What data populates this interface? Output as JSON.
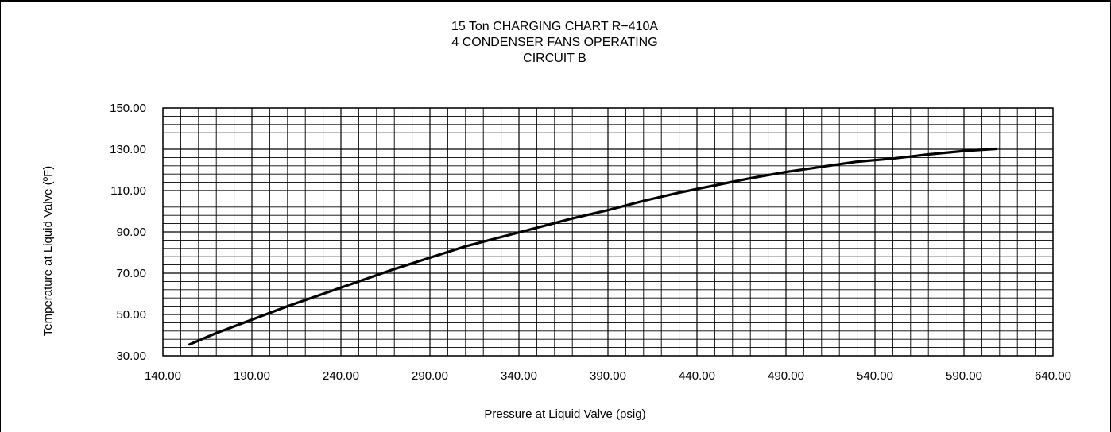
{
  "chart_data": {
    "type": "line",
    "title_lines": [
      "15 Ton CHARGING CHART R−410A",
      "4 CONDENSER FANS OPERATING",
      "CIRCUIT B"
    ],
    "xlabel": "Pressure at Liquid Valve (psig)",
    "ylabel": "Temperature at Liquid Valve (ºF)",
    "xlim": [
      140,
      640
    ],
    "ylim": [
      30,
      150
    ],
    "x_ticks": [
      "140.00",
      "190.00",
      "240.00",
      "290.00",
      "340.00",
      "390.00",
      "440.00",
      "490.00",
      "540.00",
      "590.00",
      "640.00"
    ],
    "y_ticks": [
      "30.00",
      "50.00",
      "70.00",
      "90.00",
      "110.00",
      "130.00",
      "150.00"
    ],
    "x_tick_values": [
      140,
      190,
      240,
      290,
      340,
      390,
      440,
      490,
      540,
      590,
      640
    ],
    "y_tick_values": [
      30,
      50,
      70,
      90,
      110,
      130,
      150
    ],
    "grid": true,
    "grid_minor_x_step": 10,
    "grid_minor_y_step": 4,
    "series": [
      {
        "x": [
          155,
          170,
          190,
          210,
          230,
          250,
          270,
          290,
          310,
          330,
          350,
          370,
          390,
          410,
          430,
          450,
          470,
          490,
          510,
          530,
          550,
          570,
          590,
          608
        ],
        "y": [
          35.5,
          41,
          47.5,
          54,
          60,
          66,
          72,
          77.5,
          83,
          87.5,
          92,
          96.5,
          100.5,
          105,
          109,
          112.5,
          116,
          119,
          121.5,
          124,
          125.5,
          127.5,
          129.2,
          130.2
        ],
        "color": "#000000"
      }
    ]
  }
}
